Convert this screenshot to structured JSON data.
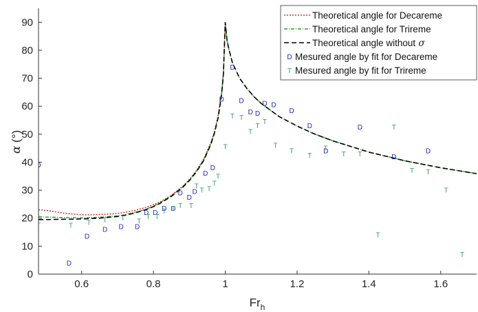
{
  "chart_data": {
    "type": "line",
    "xlabel_main": "Fr",
    "xlabel_sub": "h",
    "ylabel_greek": "α",
    "ylabel_unit": " (°)",
    "xlim": [
      0.48,
      1.7
    ],
    "ylim": [
      0,
      95
    ],
    "xticks": [
      0.6,
      0.8,
      1.0,
      1.2,
      1.4,
      1.6
    ],
    "xtick_labels": [
      "0.6",
      "0.8",
      "1",
      "1.2",
      "1.4",
      "1.6"
    ],
    "yticks": [
      0,
      10,
      20,
      30,
      40,
      50,
      60,
      70,
      80,
      90
    ],
    "ytick_labels": [
      "0",
      "10",
      "20",
      "30",
      "40",
      "50",
      "60",
      "70",
      "80",
      "90"
    ],
    "grid": false,
    "legend_position": "top-right",
    "legend": [
      {
        "label": "Theoretical angle for Decareme",
        "kind": "line",
        "color": "#d62728",
        "dash": "2,2"
      },
      {
        "label": "Theoretical angle for Trireme",
        "kind": "line",
        "color": "#2ca02c",
        "dash": "5,2,1,2"
      },
      {
        "label": "Theoretical angle without",
        "symbol": "σ",
        "kind": "line",
        "color": "#000000",
        "dash": "7,4"
      },
      {
        "label": "Mesured angle by fit for Decareme",
        "kind": "marker",
        "marker": "D",
        "color": "#1f1fbf"
      },
      {
        "label": "Mesured angle by fit for Trireme",
        "kind": "marker",
        "marker": "T",
        "color": "#2a9d6e"
      }
    ],
    "series": [
      {
        "name": "Theoretical angle for Decareme",
        "color": "#d62728",
        "x": [
          0.48,
          0.5,
          0.52,
          0.55,
          0.58,
          0.6,
          0.62,
          0.65,
          0.68,
          0.7,
          0.72,
          0.75,
          0.78,
          0.8,
          0.82,
          0.85,
          0.88,
          0.9,
          0.92,
          0.94,
          0.96,
          0.97,
          0.98,
          0.99,
          0.995,
          1.0
        ],
        "y": [
          23.0,
          22.8,
          22.4,
          21.8,
          21.4,
          21.2,
          21.2,
          21.3,
          21.5,
          21.7,
          22.1,
          22.8,
          23.9,
          24.8,
          25.9,
          28.2,
          31.2,
          33.8,
          37.0,
          41.1,
          47.0,
          51.0,
          56.5,
          65.0,
          72.0,
          90.0
        ]
      },
      {
        "name": "Theoretical angle for Trireme",
        "color": "#2ca02c",
        "x": [
          0.48,
          0.5,
          0.55,
          0.6,
          0.65,
          0.7,
          0.72,
          0.75,
          0.78,
          0.8,
          0.82,
          0.85,
          0.88,
          0.9,
          0.92,
          0.94,
          0.96,
          0.97,
          0.98,
          0.99,
          0.995,
          1.0,
          1.005,
          1.01,
          1.02,
          1.04,
          1.06,
          1.08,
          1.1,
          1.15,
          1.2,
          1.25,
          1.3,
          1.4,
          1.5,
          1.6,
          1.7
        ],
        "y": [
          20.6,
          20.4,
          20.2,
          20.1,
          20.3,
          20.8,
          21.2,
          22.1,
          23.2,
          24.3,
          25.6,
          28.0,
          31.0,
          33.6,
          36.8,
          40.8,
          46.6,
          50.6,
          56.0,
          64.5,
          71.8,
          90.0,
          83.5,
          80.5,
          75.5,
          70.0,
          66.4,
          63.4,
          61.0,
          56.3,
          52.9,
          50.0,
          47.6,
          43.6,
          40.5,
          38.0,
          35.9
        ]
      },
      {
        "name": "Theoretical angle without σ",
        "color": "#000000",
        "x": [
          0.48,
          0.5,
          0.55,
          0.6,
          0.65,
          0.7,
          0.72,
          0.75,
          0.78,
          0.8,
          0.82,
          0.85,
          0.88,
          0.9,
          0.92,
          0.94,
          0.96,
          0.97,
          0.98,
          0.99,
          0.995,
          1.0,
          1.005,
          1.01,
          1.02,
          1.04,
          1.06,
          1.08,
          1.1,
          1.15,
          1.2,
          1.25,
          1.3,
          1.4,
          1.5,
          1.6,
          1.7
        ],
        "y": [
          19.5,
          19.5,
          19.6,
          19.7,
          20.0,
          20.6,
          21.0,
          21.9,
          23.1,
          24.1,
          25.4,
          27.8,
          30.8,
          33.4,
          36.6,
          40.6,
          46.4,
          50.4,
          55.8,
          64.3,
          71.7,
          90.0,
          83.5,
          80.5,
          75.5,
          70.0,
          66.4,
          63.4,
          61.0,
          56.3,
          52.9,
          50.0,
          47.6,
          43.6,
          40.5,
          38.0,
          35.9
        ]
      }
    ],
    "scatter_series": [
      {
        "name": "Mesured angle by fit for Decareme",
        "marker": "D",
        "color": "#1f1fbf",
        "x": [
          0.48,
          0.565,
          0.615,
          0.665,
          0.71,
          0.755,
          0.78,
          0.805,
          0.83,
          0.855,
          0.875,
          0.9,
          0.915,
          0.945,
          0.965,
          0.99,
          1.02,
          1.045,
          1.07,
          1.09,
          1.11,
          1.135,
          1.185,
          1.235,
          1.28,
          1.375,
          1.47,
          1.565
        ],
        "y": [
          39.0,
          4.0,
          13.5,
          16.0,
          17.0,
          17.0,
          22.0,
          22.0,
          23.5,
          23.5,
          29.0,
          27.5,
          29.5,
          36.0,
          38.0,
          62.5,
          74.0,
          62.0,
          58.0,
          57.5,
          61.0,
          60.5,
          58.5,
          53.0,
          44.0,
          52.5,
          42.0,
          44.0
        ]
      },
      {
        "name": "Mesured angle by fit for Trireme",
        "marker": "T",
        "color": "#2a9d6e",
        "x": [
          0.48,
          0.57,
          0.62,
          0.665,
          0.715,
          0.76,
          0.785,
          0.81,
          0.83,
          0.855,
          0.875,
          0.905,
          0.92,
          0.935,
          0.955,
          0.97,
          0.98,
          1.0,
          1.02,
          1.045,
          1.07,
          1.09,
          1.11,
          1.14,
          1.185,
          1.235,
          1.28,
          1.33,
          1.375,
          1.425,
          1.47,
          1.52,
          1.565,
          1.615,
          1.66
        ],
        "y": [
          17.5,
          17.5,
          18.5,
          19.5,
          20.0,
          19.0,
          20.5,
          20.5,
          22.5,
          23.5,
          24.5,
          24.5,
          31.5,
          30.0,
          30.5,
          32.5,
          35.0,
          45.5,
          56.5,
          56.0,
          51.0,
          53.0,
          54.5,
          46.0,
          44.0,
          42.5,
          45.0,
          43.0,
          43.0,
          14.0,
          52.5,
          37.0,
          36.5,
          30.0,
          7.0
        ]
      }
    ]
  }
}
